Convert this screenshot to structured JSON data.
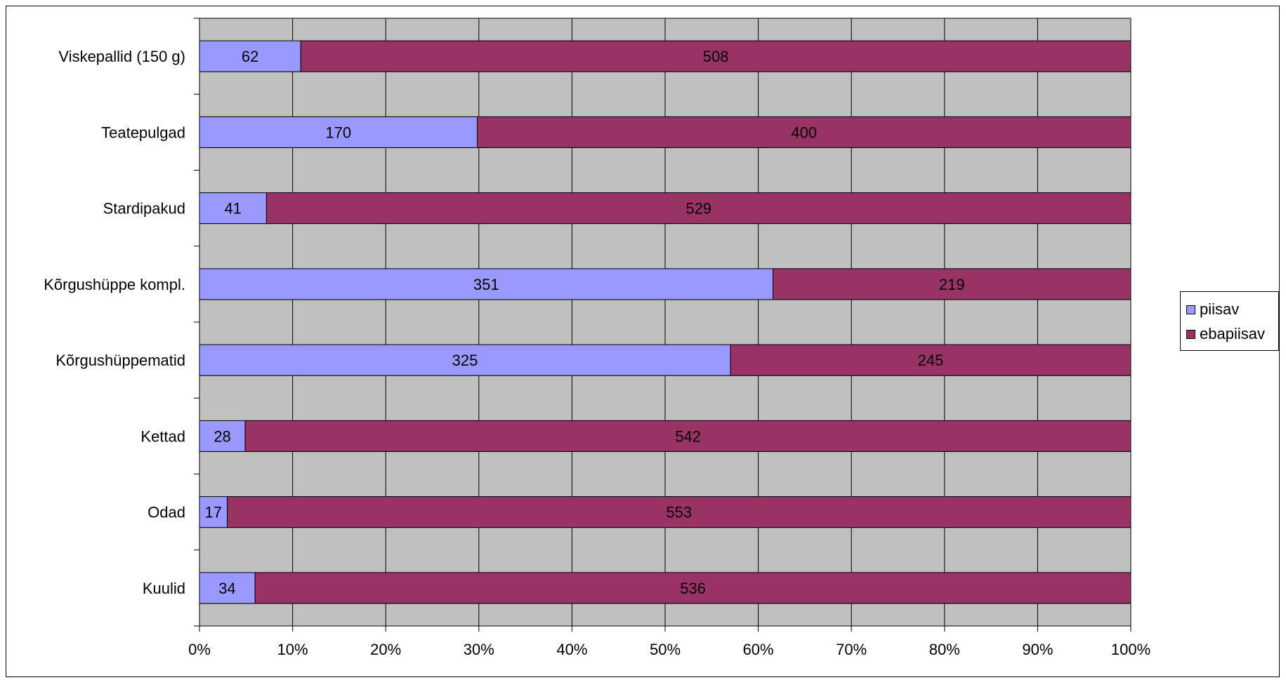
{
  "chart_data": {
    "type": "bar",
    "orientation": "horizontal",
    "stacked": "percent",
    "categories": [
      "Viskepallid (150 g)",
      "Teatepulgad",
      "Stardipakud",
      "Kõrgushüppe kompl.",
      "Kõrgushüppematid",
      "Kettad",
      "Odad",
      "Kuulid"
    ],
    "series": [
      {
        "name": "piisav",
        "values": [
          62,
          170,
          41,
          351,
          325,
          28,
          17,
          34
        ],
        "color": "#9999FF"
      },
      {
        "name": "ebapiisav",
        "values": [
          508,
          400,
          529,
          219,
          245,
          542,
          553,
          536
        ],
        "color": "#993366"
      }
    ],
    "xlim": [
      0,
      100
    ],
    "x_ticks": [
      "0%",
      "10%",
      "20%",
      "30%",
      "40%",
      "50%",
      "60%",
      "70%",
      "80%",
      "90%",
      "100%"
    ],
    "grid": true,
    "plot_background": "#C0C0C0",
    "legend_position": "right",
    "data_labels": true
  }
}
